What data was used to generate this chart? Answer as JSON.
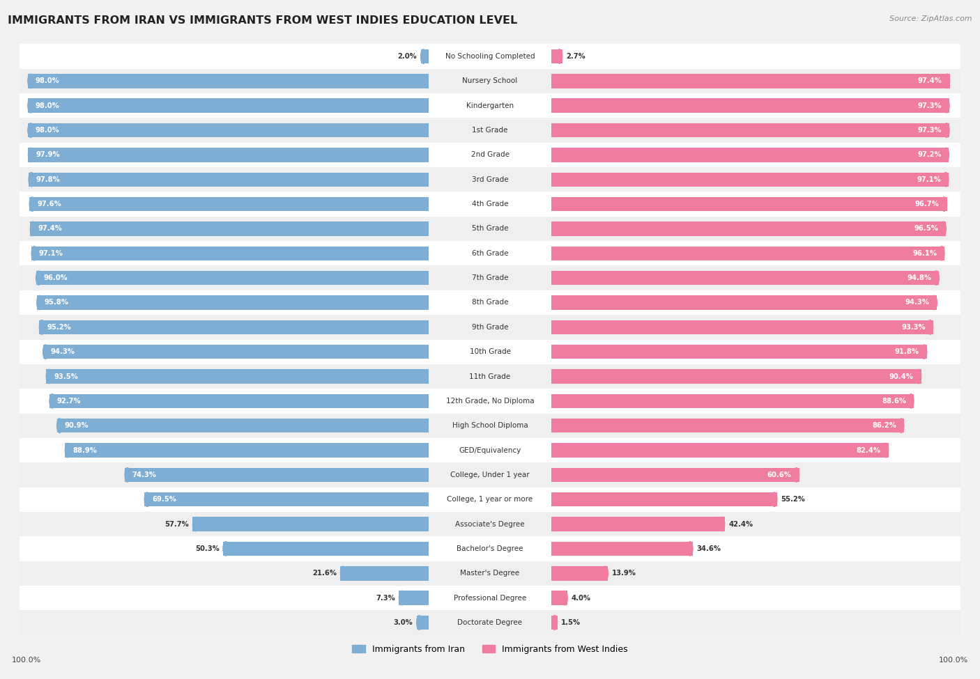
{
  "title": "IMMIGRANTS FROM IRAN VS IMMIGRANTS FROM WEST INDIES EDUCATION LEVEL",
  "source": "Source: ZipAtlas.com",
  "categories": [
    "No Schooling Completed",
    "Nursery School",
    "Kindergarten",
    "1st Grade",
    "2nd Grade",
    "3rd Grade",
    "4th Grade",
    "5th Grade",
    "6th Grade",
    "7th Grade",
    "8th Grade",
    "9th Grade",
    "10th Grade",
    "11th Grade",
    "12th Grade, No Diploma",
    "High School Diploma",
    "GED/Equivalency",
    "College, Under 1 year",
    "College, 1 year or more",
    "Associate's Degree",
    "Bachelor's Degree",
    "Master's Degree",
    "Professional Degree",
    "Doctorate Degree"
  ],
  "iran_values": [
    2.0,
    98.0,
    98.0,
    98.0,
    97.9,
    97.8,
    97.6,
    97.4,
    97.1,
    96.0,
    95.8,
    95.2,
    94.3,
    93.5,
    92.7,
    90.9,
    88.9,
    74.3,
    69.5,
    57.7,
    50.3,
    21.6,
    7.3,
    3.0
  ],
  "west_indies_values": [
    2.7,
    97.4,
    97.3,
    97.3,
    97.2,
    97.1,
    96.7,
    96.5,
    96.1,
    94.8,
    94.3,
    93.3,
    91.8,
    90.4,
    88.6,
    86.2,
    82.4,
    60.6,
    55.2,
    42.4,
    34.6,
    13.9,
    4.0,
    1.5
  ],
  "iran_color": "#7faed4",
  "west_indies_color": "#f07ca0",
  "row_bg_even": "#efefef",
  "row_bg_odd": "#ffffff",
  "label_color": "#333333",
  "title_color": "#222222",
  "legend_iran": "Immigrants from Iran",
  "legend_west_indies": "Immigrants from West Indies",
  "axis_label": "100.0%",
  "bar_height": 0.58
}
